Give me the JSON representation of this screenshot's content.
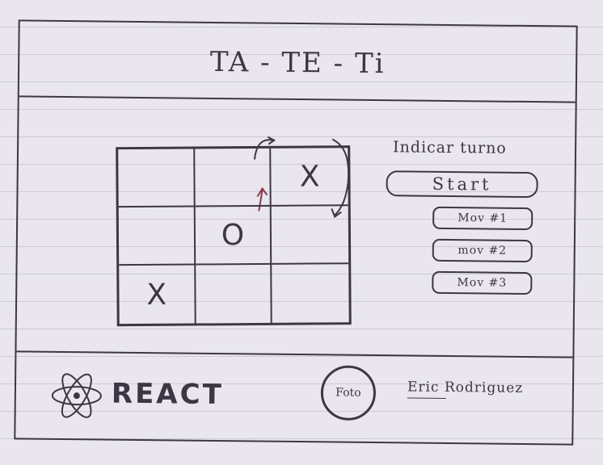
{
  "header": {
    "title": "TA - TE - Ti"
  },
  "board": {
    "cells": [
      "",
      "",
      "X",
      "",
      "O",
      "",
      "X",
      "",
      ""
    ]
  },
  "sidebar": {
    "turn_indicator": "Indicar turno",
    "start_label": "Start",
    "moves": [
      "Mov #1",
      "mov #2",
      "Mov #3"
    ]
  },
  "footer": {
    "react_label": "REACT",
    "foto_label": "Foto",
    "author": "Eric Rodriguez"
  },
  "colors": {
    "ink": "#3d3745",
    "paper": "#e9e6ee",
    "rule_lines": "#cfcbd6"
  }
}
